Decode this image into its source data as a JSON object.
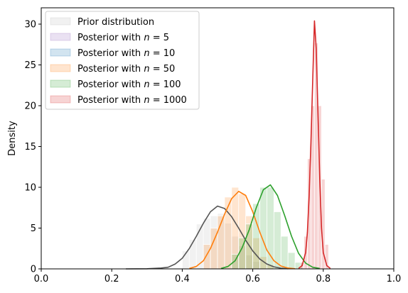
{
  "chart_data": {
    "type": "histogram_with_kde",
    "ylabel": "Density",
    "xlim": [
      0,
      1
    ],
    "ylim": [
      0,
      32
    ],
    "xticks": [
      "0.0",
      "0.2",
      "0.4",
      "0.6",
      "0.8",
      "1.0"
    ],
    "yticks": [
      "0",
      "5",
      "10",
      "15",
      "20",
      "25",
      "30"
    ],
    "legend_position": "upper-left",
    "series": [
      {
        "name": "Prior distribution",
        "color": "#555555",
        "fill": "#bbbbbb",
        "bar_width": 0.02,
        "bars": [
          [
            0.41,
            2.2
          ],
          [
            0.43,
            3.6
          ],
          [
            0.45,
            5.5
          ],
          [
            0.47,
            6.2
          ],
          [
            0.49,
            6.5
          ],
          [
            0.51,
            6.8
          ],
          [
            0.53,
            5.6
          ],
          [
            0.55,
            4.0
          ],
          [
            0.57,
            2.8
          ],
          [
            0.59,
            1.7
          ],
          [
            0.61,
            0.9
          ]
        ],
        "curve": [
          [
            0.24,
            0.0
          ],
          [
            0.3,
            0.02
          ],
          [
            0.34,
            0.1
          ],
          [
            0.36,
            0.2
          ],
          [
            0.38,
            0.6
          ],
          [
            0.4,
            1.3
          ],
          [
            0.42,
            2.5
          ],
          [
            0.44,
            4.0
          ],
          [
            0.46,
            5.6
          ],
          [
            0.48,
            7.0
          ],
          [
            0.5,
            7.7
          ],
          [
            0.52,
            7.4
          ],
          [
            0.54,
            6.4
          ],
          [
            0.56,
            5.0
          ],
          [
            0.58,
            3.5
          ],
          [
            0.6,
            2.2
          ],
          [
            0.62,
            1.2
          ],
          [
            0.64,
            0.6
          ],
          [
            0.66,
            0.25
          ],
          [
            0.68,
            0.08
          ],
          [
            0.7,
            0.02
          ]
        ]
      },
      {
        "name": "Posterior with $n = 5$",
        "color": "#9467bd",
        "fill": "#9467bd",
        "bar_width": 0.02,
        "bars": [],
        "curve": []
      },
      {
        "name": "Posterior with $n = 10$",
        "color": "#1f77b4",
        "fill": "#1f77b4",
        "bar_width": 0.02,
        "bars": [],
        "curve": []
      },
      {
        "name": "Posterior with $n = 50$",
        "color": "#ff7f0e",
        "fill": "#ff7f0e",
        "bar_width": 0.02,
        "bars": [
          [
            0.47,
            3.0
          ],
          [
            0.49,
            5.0
          ],
          [
            0.51,
            6.5
          ],
          [
            0.53,
            8.8
          ],
          [
            0.55,
            10.0
          ],
          [
            0.57,
            9.2
          ],
          [
            0.59,
            6.5
          ],
          [
            0.61,
            3.8
          ],
          [
            0.63,
            1.5
          ],
          [
            0.65,
            0.5
          ]
        ],
        "curve": [
          [
            0.42,
            0.05
          ],
          [
            0.44,
            0.3
          ],
          [
            0.46,
            1.0
          ],
          [
            0.48,
            2.5
          ],
          [
            0.5,
            4.5
          ],
          [
            0.52,
            6.7
          ],
          [
            0.54,
            8.6
          ],
          [
            0.56,
            9.5
          ],
          [
            0.58,
            9.0
          ],
          [
            0.6,
            7.0
          ],
          [
            0.62,
            4.5
          ],
          [
            0.64,
            2.3
          ],
          [
            0.66,
            1.0
          ],
          [
            0.68,
            0.35
          ],
          [
            0.7,
            0.1
          ],
          [
            0.72,
            0.02
          ]
        ]
      },
      {
        "name": "Posterior with $n = 100$",
        "color": "#2ca02c",
        "fill": "#2ca02c",
        "bar_width": 0.02,
        "bars": [
          [
            0.55,
            1.8
          ],
          [
            0.57,
            3.8
          ],
          [
            0.59,
            5.5
          ],
          [
            0.61,
            8.0
          ],
          [
            0.63,
            10.0
          ],
          [
            0.65,
            10.0
          ],
          [
            0.67,
            7.0
          ],
          [
            0.69,
            4.0
          ],
          [
            0.71,
            2.0
          ],
          [
            0.73,
            0.8
          ]
        ],
        "curve": [
          [
            0.51,
            0.05
          ],
          [
            0.53,
            0.3
          ],
          [
            0.55,
            1.0
          ],
          [
            0.57,
            2.6
          ],
          [
            0.59,
            4.8
          ],
          [
            0.61,
            7.5
          ],
          [
            0.63,
            9.7
          ],
          [
            0.65,
            10.3
          ],
          [
            0.67,
            9.0
          ],
          [
            0.69,
            6.6
          ],
          [
            0.71,
            4.0
          ],
          [
            0.73,
            1.9
          ],
          [
            0.75,
            0.7
          ],
          [
            0.77,
            0.2
          ],
          [
            0.79,
            0.05
          ]
        ]
      },
      {
        "name": "Posterior with $n = 1000$",
        "color": "#d62728",
        "fill": "#d62728",
        "bar_width": 0.01,
        "bars": [
          [
            0.74,
            0.8
          ],
          [
            0.75,
            4.0
          ],
          [
            0.76,
            13.5
          ],
          [
            0.77,
            20.0
          ],
          [
            0.78,
            27.7
          ],
          [
            0.79,
            20.0
          ],
          [
            0.8,
            11.0
          ],
          [
            0.81,
            3.0
          ]
        ],
        "curve": [
          [
            0.73,
            0.05
          ],
          [
            0.74,
            0.4
          ],
          [
            0.75,
            2.0
          ],
          [
            0.755,
            4.5
          ],
          [
            0.76,
            9.0
          ],
          [
            0.765,
            15.5
          ],
          [
            0.77,
            23.0
          ],
          [
            0.775,
            30.4
          ],
          [
            0.78,
            27.0
          ],
          [
            0.785,
            19.0
          ],
          [
            0.79,
            11.0
          ],
          [
            0.795,
            5.0
          ],
          [
            0.8,
            2.0
          ],
          [
            0.81,
            0.4
          ],
          [
            0.82,
            0.05
          ]
        ]
      }
    ]
  }
}
